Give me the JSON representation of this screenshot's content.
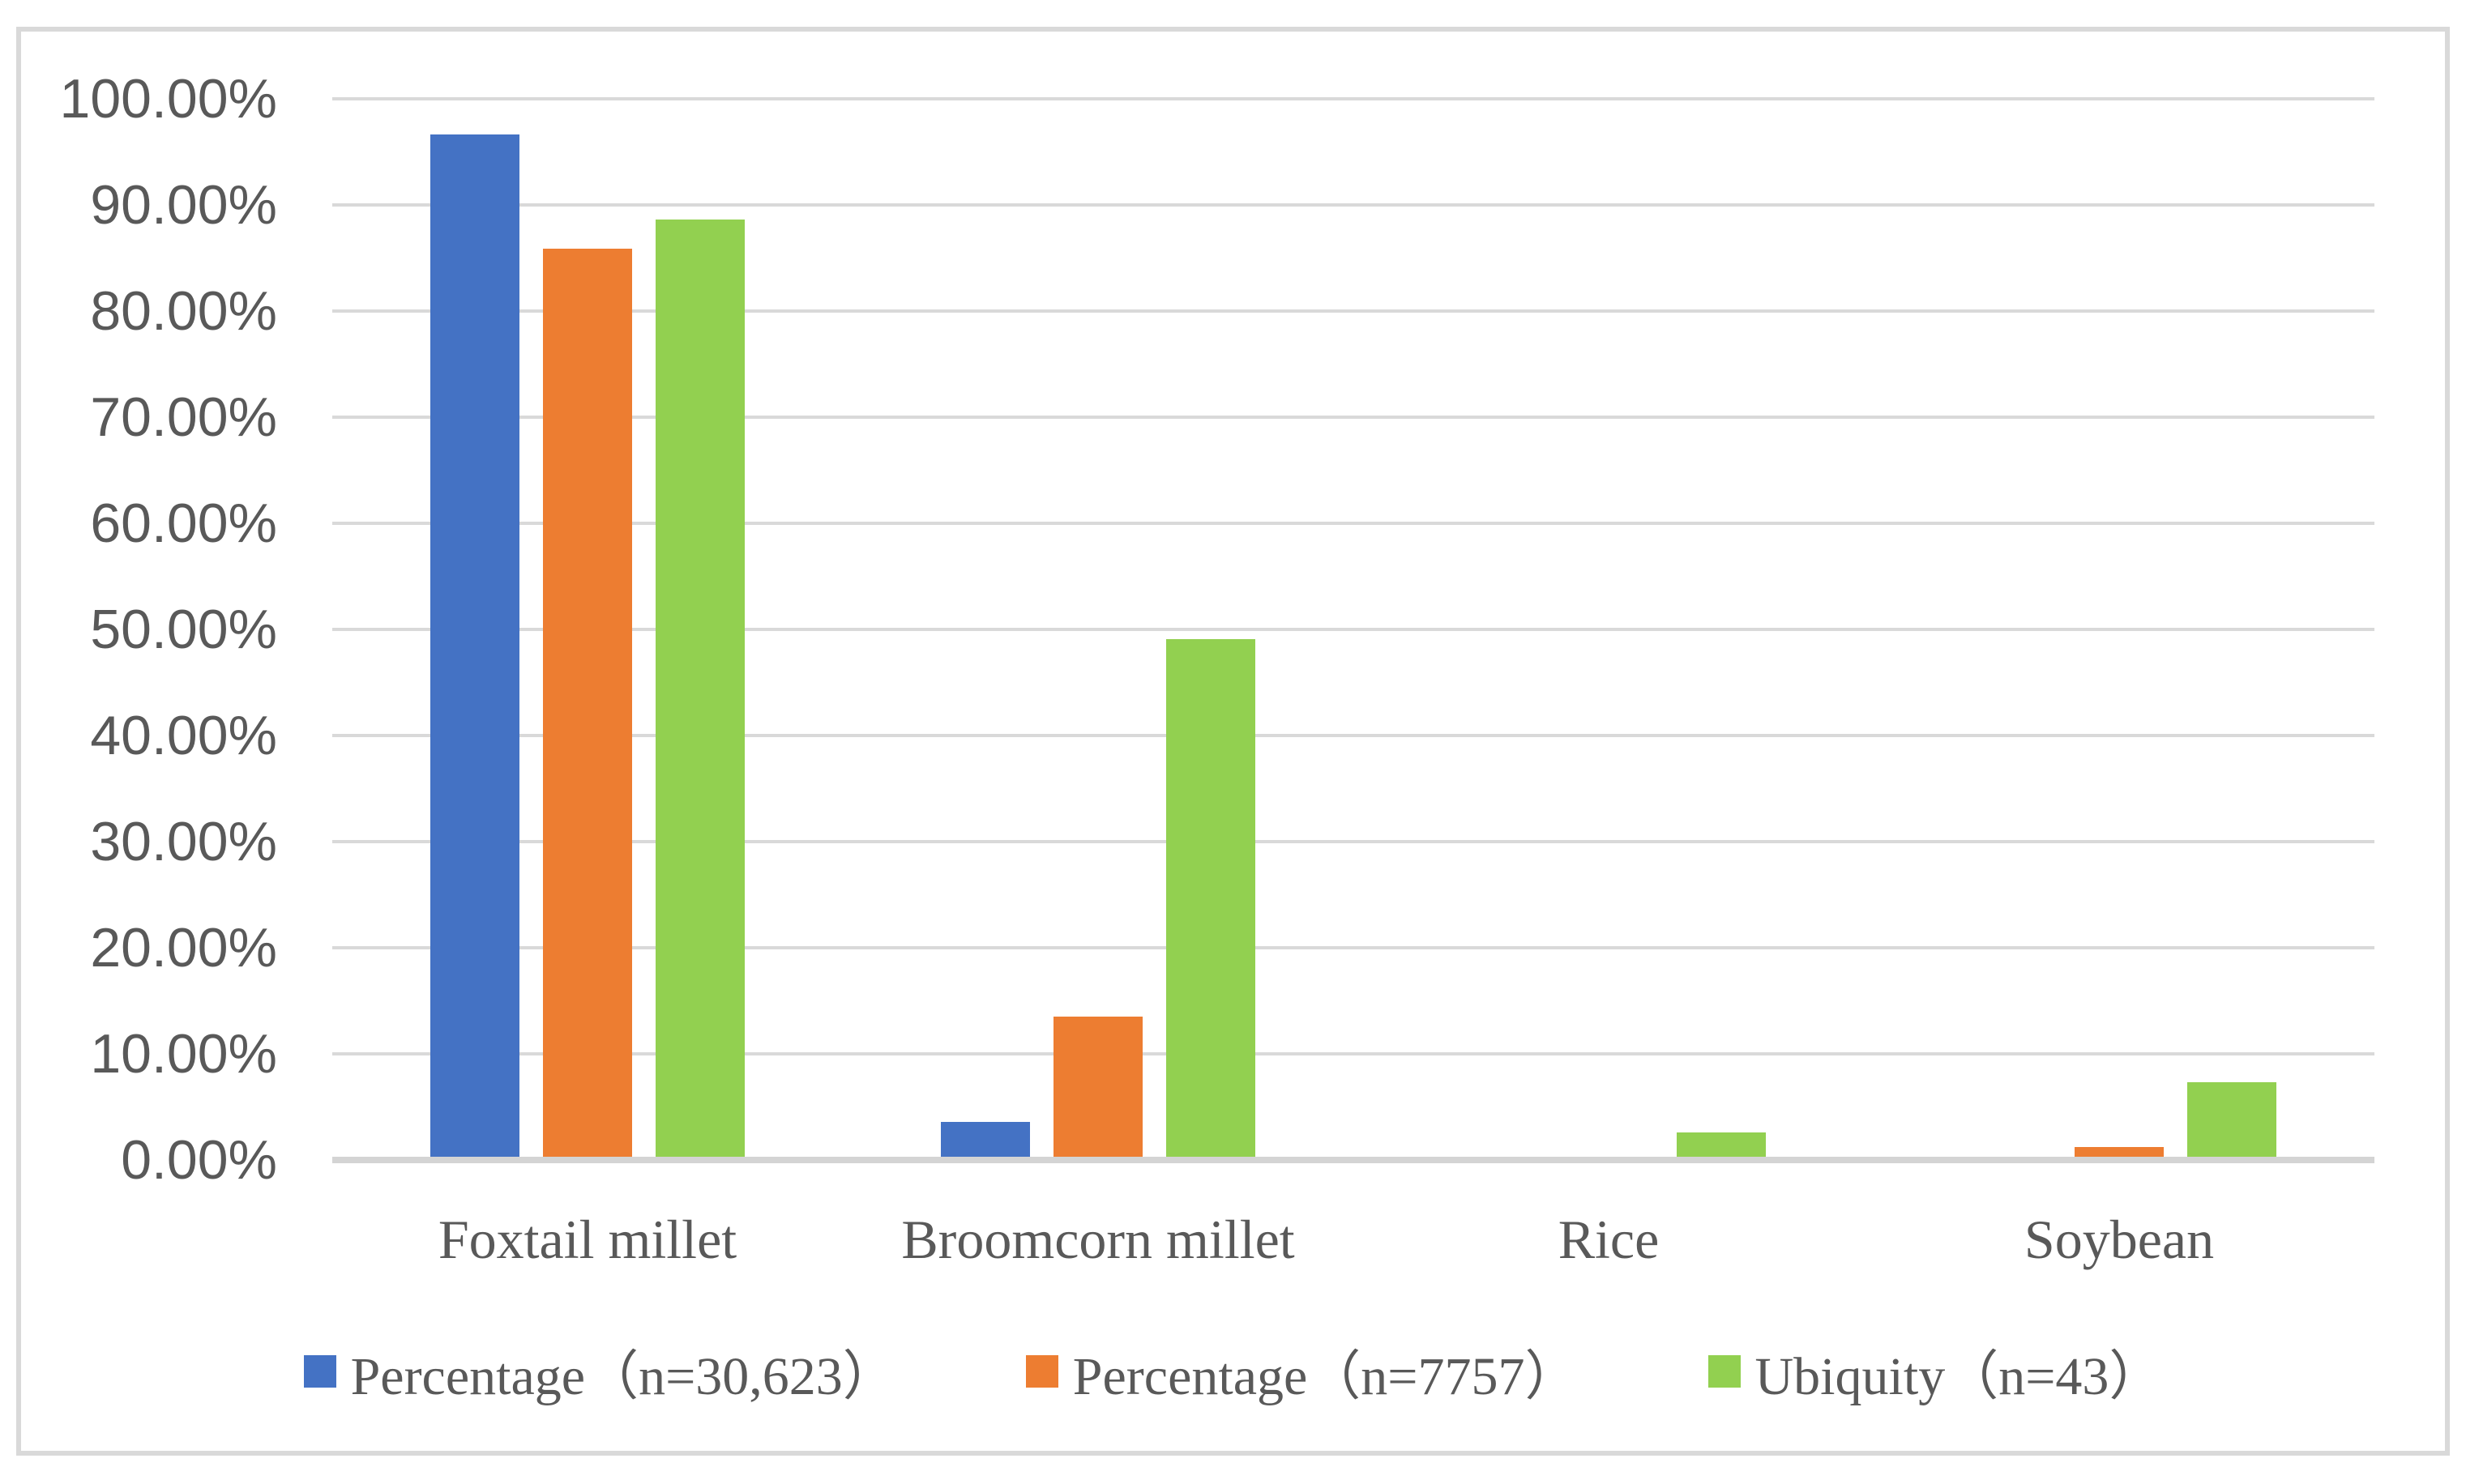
{
  "chart_data": {
    "type": "bar",
    "title": "",
    "categories": [
      "Foxtail millet",
      "Broomcorn millet",
      "Rice",
      "Soybean"
    ],
    "series": [
      {
        "name": "Percentage（n=30,623）",
        "color": "#4472C4",
        "values": [
          96.3,
          3.3,
          0,
          0
        ]
      },
      {
        "name": "Percentage（n=7757）",
        "color": "#ED7D31",
        "values": [
          85.6,
          13.2,
          0,
          0.9
        ]
      },
      {
        "name": "Ubiquity（n=43）",
        "color": "#92D050",
        "values": [
          88.3,
          48.8,
          2.3,
          7.0
        ]
      }
    ],
    "y_axis": {
      "min": 0,
      "max": 100,
      "step": 10,
      "tick_labels": [
        "0.00%",
        "10.00%",
        "20.00%",
        "30.00%",
        "40.00%",
        "50.00%",
        "60.00%",
        "70.00%",
        "80.00%",
        "90.00%",
        "100.00%"
      ]
    },
    "x_axis": {
      "tick_labels": [
        "Foxtail millet",
        "Broomcorn millet",
        "Rice",
        "Soybean"
      ]
    },
    "grid": "horizontal",
    "legend_position": "bottom",
    "styles": {
      "text_color": "#595959",
      "grid_color": "#D9D9D9",
      "axis_color": "#D4D4D4",
      "border_color": "#D9D9D9",
      "background": "#FFFFFF"
    }
  }
}
